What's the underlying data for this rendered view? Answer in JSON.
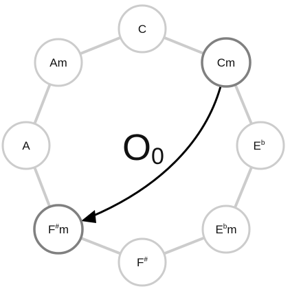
{
  "diagram": {
    "nodes": [
      {
        "id": "C",
        "base": "C",
        "accidental": "",
        "suffix": "",
        "highlighted": false
      },
      {
        "id": "Cm",
        "base": "Cm",
        "accidental": "",
        "suffix": "",
        "highlighted": true
      },
      {
        "id": "Eb",
        "base": "E",
        "accidental": "b",
        "suffix": "",
        "highlighted": false
      },
      {
        "id": "Ebm",
        "base": "E",
        "accidental": "b",
        "suffix": "m",
        "highlighted": false
      },
      {
        "id": "F#",
        "base": "F",
        "accidental": "#",
        "suffix": "",
        "highlighted": false
      },
      {
        "id": "F#m",
        "base": "F",
        "accidental": "#",
        "suffix": "m",
        "highlighted": true
      },
      {
        "id": "A",
        "base": "A",
        "accidental": "",
        "suffix": "",
        "highlighted": false
      },
      {
        "id": "Am",
        "base": "Am",
        "accidental": "",
        "suffix": "",
        "highlighted": false
      }
    ],
    "arrow": {
      "from": "Cm",
      "to": "F#m"
    },
    "operator": {
      "symbol": "O",
      "subscript": "0"
    },
    "colors": {
      "edge": "#cccccc",
      "active_ring": "#808080",
      "arrow": "#000000"
    }
  }
}
